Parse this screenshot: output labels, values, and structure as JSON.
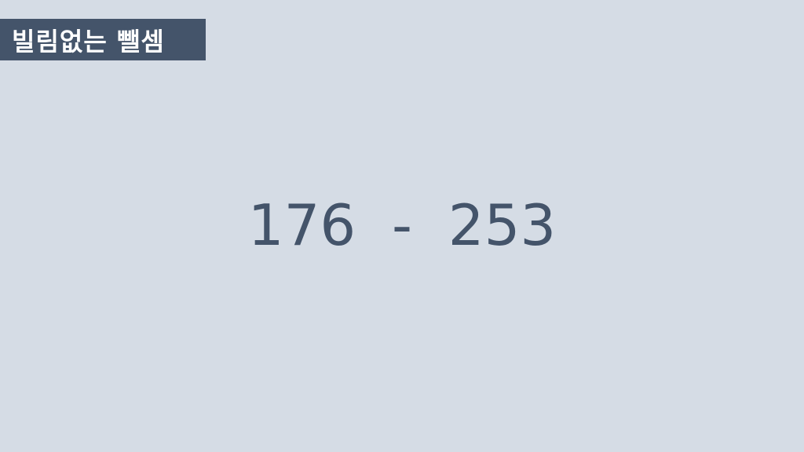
{
  "title": "빌림없는 뺄셈",
  "problem": {
    "left_operand": "176",
    "operator": "-",
    "right_operand": "253"
  },
  "colors": {
    "background": "#d5dce5",
    "banner": "#44546a",
    "banner_text": "#ffffff",
    "problem_text": "#44546a"
  }
}
